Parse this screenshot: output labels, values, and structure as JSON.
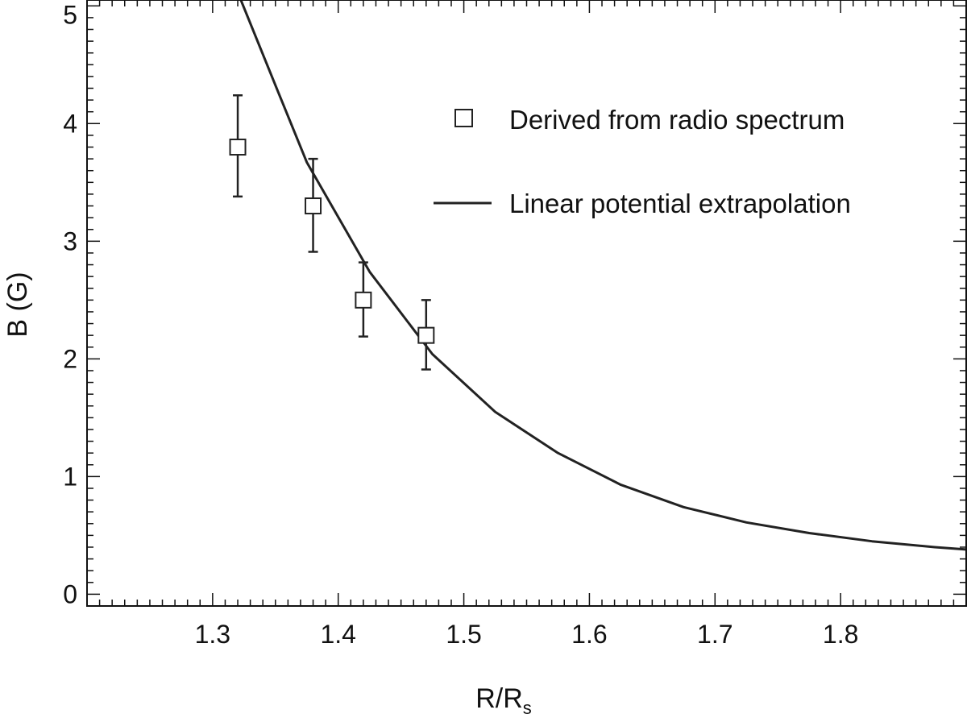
{
  "chart_data": {
    "type": "scatter",
    "title": "",
    "xlabel": "R/R",
    "xlabel_subscript": "s",
    "ylabel": "B (G)",
    "xlim": [
      1.2,
      1.9
    ],
    "ylim": [
      -0.1,
      5.05
    ],
    "x_ticks": [
      {
        "value": 1.3,
        "label": "1.3"
      },
      {
        "value": 1.4,
        "label": "1.4"
      },
      {
        "value": 1.5,
        "label": "1.5"
      },
      {
        "value": 1.6,
        "label": "1.6"
      },
      {
        "value": 1.7,
        "label": "1.7"
      },
      {
        "value": 1.8,
        "label": "1.8"
      }
    ],
    "y_ticks": [
      {
        "value": 0,
        "label": "0"
      },
      {
        "value": 1,
        "label": "1"
      },
      {
        "value": 2,
        "label": "2"
      },
      {
        "value": 3,
        "label": "3"
      },
      {
        "value": 4,
        "label": "4"
      },
      {
        "value": 5,
        "label": "5"
      }
    ],
    "grid": false,
    "legend_position": "top-right",
    "series": [
      {
        "name": "Derived from radio spectrum",
        "kind": "points-with-errorbars",
        "marker": "open-square",
        "points": [
          {
            "x": 1.32,
            "y": 3.8,
            "yerr_low": 3.38,
            "yerr_high": 4.24
          },
          {
            "x": 1.38,
            "y": 3.3,
            "yerr_low": 2.91,
            "yerr_high": 3.7
          },
          {
            "x": 1.42,
            "y": 2.5,
            "yerr_low": 2.19,
            "yerr_high": 2.82
          },
          {
            "x": 1.47,
            "y": 2.2,
            "yerr_low": 1.91,
            "yerr_high": 2.5
          }
        ]
      },
      {
        "name": "Linear potential extrapolation",
        "kind": "line",
        "points": [
          {
            "x": 1.3225,
            "y": 5.05
          },
          {
            "x": 1.3525,
            "y": 4.26
          },
          {
            "x": 1.375,
            "y": 3.67
          },
          {
            "x": 1.425,
            "y": 2.74
          },
          {
            "x": 1.475,
            "y": 2.04
          },
          {
            "x": 1.525,
            "y": 1.55
          },
          {
            "x": 1.575,
            "y": 1.2
          },
          {
            "x": 1.625,
            "y": 0.93
          },
          {
            "x": 1.675,
            "y": 0.74
          },
          {
            "x": 1.725,
            "y": 0.61
          },
          {
            "x": 1.775,
            "y": 0.52
          },
          {
            "x": 1.825,
            "y": 0.45
          },
          {
            "x": 1.875,
            "y": 0.4
          },
          {
            "x": 1.9,
            "y": 0.38
          }
        ]
      }
    ],
    "colors": {
      "axes": "#111111",
      "line": "#222222",
      "marker": "#222222"
    }
  }
}
